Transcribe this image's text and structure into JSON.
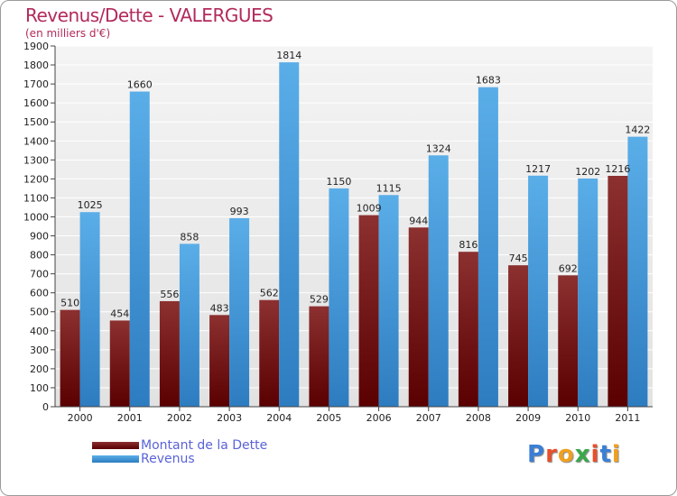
{
  "header": {
    "title": "Revenus/Dette - VALERGUES",
    "subtitle": "(en milliers d'€)"
  },
  "legend": {
    "items": [
      {
        "label": "Montant de la Dette",
        "color": "#7a1010"
      },
      {
        "label": "Revenus",
        "color": "#4aa0e0"
      }
    ]
  },
  "logo": {
    "text": "Proxiti"
  },
  "chart_data": {
    "type": "bar",
    "title": "Revenus/Dette - VALERGUES",
    "subtitle": "(en milliers d'€)",
    "categories": [
      "2000",
      "2001",
      "2002",
      "2003",
      "2004",
      "2005",
      "2006",
      "2007",
      "2008",
      "2009",
      "2010",
      "2011"
    ],
    "series": [
      {
        "name": "Montant de la Dette",
        "color": "#7a1010",
        "values": [
          510,
          454,
          556,
          483,
          562,
          529,
          1009,
          944,
          816,
          745,
          692,
          1216
        ]
      },
      {
        "name": "Revenus",
        "color": "#4aa0e0",
        "values": [
          1025,
          1660,
          858,
          993,
          1814,
          1150,
          1115,
          1324,
          1683,
          1217,
          1202,
          1422
        ]
      }
    ],
    "ylim": [
      0,
      1900
    ],
    "ytick_step": 100,
    "grid": true,
    "legend_position": "bottom-left"
  }
}
